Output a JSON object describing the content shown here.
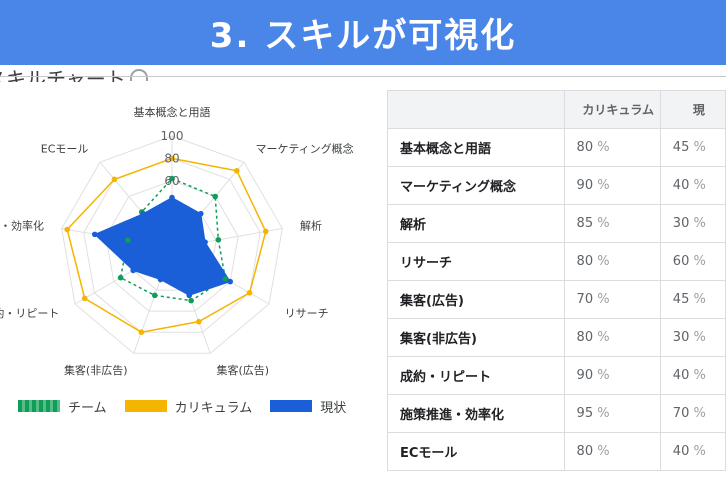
{
  "banner": {
    "title": "3. スキルが可視化"
  },
  "section": {
    "heading": "スキルチャート"
  },
  "chart_data": {
    "type": "radar",
    "axes": [
      "基本概念と用語",
      "マーケティング概念",
      "解析",
      "リサーチ",
      "集客(広告)",
      "集客(非広告)",
      "成約・リピート",
      "施策推進・効率化",
      "ECモール"
    ],
    "axis_labels_shown": [
      "基本概念と用語",
      "マーケティング概念",
      "解析",
      "リサーチ",
      "集客(広告)",
      "集客(非広告)",
      "成約・リピート",
      "推進・効率化",
      "ECモール"
    ],
    "tick_labels": [
      "100",
      "80",
      "60"
    ],
    "range": [
      0,
      100
    ],
    "series": [
      {
        "name": "チーム",
        "values": [
          62,
          60,
          42,
          55,
          50,
          45,
          53,
          40,
          42
        ],
        "color": "#0f9d58",
        "style": "dashed"
      },
      {
        "name": "カリキュラム",
        "values": [
          80,
          90,
          85,
          80,
          70,
          80,
          90,
          95,
          80
        ],
        "color": "#f4b400",
        "style": "solid"
      },
      {
        "name": "現状",
        "values": [
          45,
          40,
          30,
          60,
          45,
          30,
          40,
          70,
          40
        ],
        "color": "#1a5fd8",
        "style": "filled"
      }
    ],
    "legend_position": "bottom"
  },
  "table": {
    "headers": [
      "",
      "カリキュラム",
      "現"
    ],
    "rows": [
      {
        "name": "基本概念と用語",
        "curriculum": "80",
        "current": "45"
      },
      {
        "name": "マーケティング概念",
        "curriculum": "90",
        "current": "40"
      },
      {
        "name": "解析",
        "curriculum": "85",
        "current": "30"
      },
      {
        "name": "リサーチ",
        "curriculum": "80",
        "current": "60"
      },
      {
        "name": "集客(広告)",
        "curriculum": "70",
        "current": "45"
      },
      {
        "name": "集客(非広告)",
        "curriculum": "80",
        "current": "30"
      },
      {
        "name": "成約・リピート",
        "curriculum": "90",
        "current": "40"
      },
      {
        "name": "施策推進・効率化",
        "curriculum": "95",
        "current": "70"
      },
      {
        "name": "ECモール",
        "curriculum": "80",
        "current": "40"
      }
    ],
    "unit": "%"
  },
  "icons": {
    "info": "info-icon"
  }
}
